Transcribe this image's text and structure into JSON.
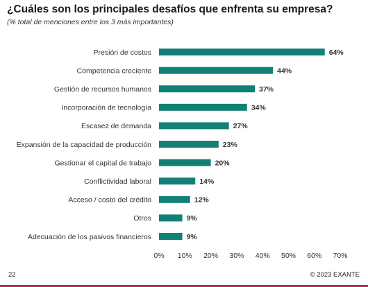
{
  "header": {
    "title": "¿Cuáles son los principales desafíos que enfrenta su empresa?",
    "subtitle": "(% total de menciones entre los 3 más importantes)"
  },
  "footer": {
    "page_number": "22",
    "copyright": "© 2023 EXANTE"
  },
  "colors": {
    "bar": "#138075",
    "accent_line": "#c2245a"
  },
  "chart_data": {
    "type": "bar",
    "orientation": "horizontal",
    "title": "¿Cuáles son los principales desafíos que enfrenta su empresa?",
    "subtitle": "(% total de menciones entre los 3 más importantes)",
    "categories": [
      "Presión de costos",
      "Competencia creciente",
      "Gestión de recursos humanos",
      "Incorporación de tecnología",
      "Escasez de demanda",
      "Expansión de la capacidad de producción",
      "Gestionar el capital de trabajo",
      "Conflictividad laboral",
      "Acceso / costo del crédito",
      "Otros",
      "Adecuación de los pasivos financieros"
    ],
    "values": [
      64,
      44,
      37,
      34,
      27,
      23,
      20,
      14,
      12,
      9,
      9
    ],
    "value_labels": [
      "64%",
      "44%",
      "37%",
      "34%",
      "27%",
      "23%",
      "20%",
      "14%",
      "12%",
      "9%",
      "9%"
    ],
    "xlim": [
      0,
      70
    ],
    "xticks": [
      0,
      10,
      20,
      30,
      40,
      50,
      60,
      70
    ],
    "xtick_labels": [
      "0%",
      "10%",
      "20%",
      "30%",
      "40%",
      "50%",
      "60%",
      "70%"
    ],
    "grid": false,
    "legend": "none"
  }
}
